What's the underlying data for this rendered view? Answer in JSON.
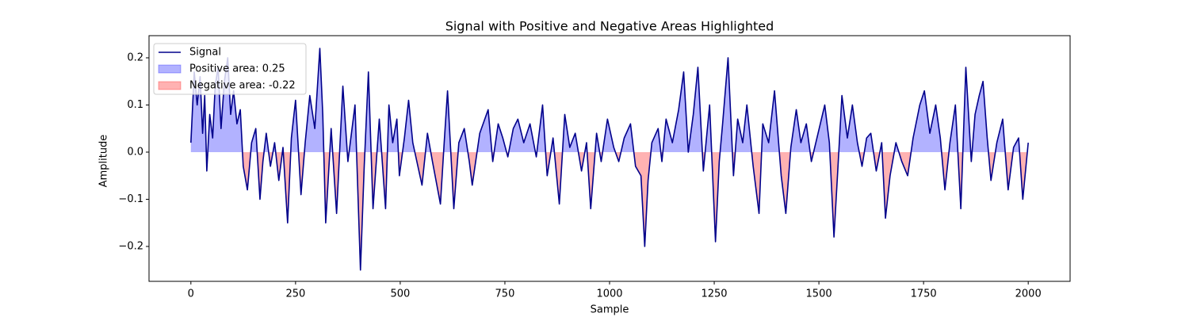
{
  "chart_data": {
    "type": "line",
    "title": "Signal with Positive and Negative Areas Highlighted",
    "x_label": "Sample",
    "y_label": "Amplitude",
    "xlim": [
      -100,
      2100
    ],
    "ylim": [
      -0.274,
      0.247
    ],
    "xticks": [
      0,
      250,
      500,
      750,
      1000,
      1250,
      1500,
      1750,
      2000
    ],
    "yticks": [
      {
        "value": -0.2,
        "label": "−0.2"
      },
      {
        "value": -0.1,
        "label": "−0.1"
      },
      {
        "value": 0,
        "label": "0.0"
      },
      0.1,
      0.2
    ],
    "legend": "upper left",
    "x": [
      0,
      8,
      15,
      22,
      28,
      33,
      38,
      45,
      52,
      58,
      65,
      72,
      80,
      88,
      95,
      102,
      110,
      118,
      125,
      135,
      145,
      155,
      165,
      172,
      180,
      190,
      200,
      210,
      220,
      231,
      240,
      250,
      263,
      273,
      284,
      296,
      308,
      315,
      322,
      335,
      348,
      363,
      375,
      392,
      405,
      414,
      424,
      435,
      450,
      465,
      473,
      482,
      492,
      498,
      510,
      520,
      530,
      552,
      565,
      577,
      596,
      605,
      613,
      628,
      640,
      653,
      665,
      672,
      690,
      710,
      721,
      734,
      745,
      757,
      770,
      781,
      795,
      810,
      825,
      840,
      851,
      865,
      880,
      893,
      905,
      918,
      933,
      945,
      955,
      969,
      980,
      995,
      1010,
      1022,
      1035,
      1050,
      1062,
      1075,
      1084,
      1092,
      1101,
      1116,
      1125,
      1135,
      1150,
      1165,
      1177,
      1188,
      1200,
      1211,
      1224,
      1239,
      1253,
      1262,
      1270,
      1283,
      1296,
      1306,
      1318,
      1328,
      1343,
      1357,
      1366,
      1380,
      1394,
      1410,
      1421,
      1433,
      1446,
      1457,
      1470,
      1482,
      1498,
      1514,
      1525,
      1536,
      1545,
      1555,
      1568,
      1580,
      1592,
      1603,
      1614,
      1624,
      1637,
      1650,
      1659,
      1670,
      1684,
      1698,
      1712,
      1725,
      1741,
      1752,
      1765,
      1779,
      1790,
      1801,
      1813,
      1826,
      1839,
      1851,
      1864,
      1873,
      1883,
      1892,
      1902,
      1911,
      1925,
      1939,
      1952,
      1965,
      1977,
      1987,
      2000
    ],
    "series": [
      {
        "name": "Signal",
        "color": "#00008b",
        "values": [
          0.02,
          0.17,
          0.1,
          0.16,
          0.04,
          0.12,
          -0.04,
          0.08,
          0.03,
          0.14,
          0.18,
          0.05,
          0.15,
          0.2,
          0.08,
          0.13,
          0.06,
          0.09,
          -0.03,
          -0.08,
          0.02,
          0.05,
          -0.1,
          -0.02,
          0.04,
          -0.03,
          0.02,
          -0.06,
          0.01,
          -0.15,
          0.03,
          0.11,
          -0.09,
          0.02,
          0.12,
          0.05,
          0.22,
          0.08,
          -0.15,
          0.05,
          -0.13,
          0.14,
          -0.02,
          0.1,
          -0.25,
          -0.03,
          0.17,
          -0.12,
          0.07,
          -0.12,
          0.1,
          0.02,
          0.07,
          -0.05,
          0.03,
          0.11,
          0.02,
          -0.07,
          0.04,
          -0.02,
          -0.11,
          0.02,
          0.13,
          -0.12,
          0.02,
          0.05,
          -0.02,
          -0.07,
          0.04,
          0.09,
          -0.02,
          0.06,
          0.03,
          -0.01,
          0.05,
          0.07,
          0.02,
          0.06,
          -0.01,
          0.1,
          -0.05,
          0.03,
          -0.11,
          0.08,
          0.01,
          0.04,
          -0.04,
          0.02,
          -0.12,
          0.04,
          -0.02,
          0.07,
          0.01,
          -0.02,
          0.03,
          0.06,
          -0.03,
          -0.05,
          -0.2,
          -0.06,
          0.02,
          0.05,
          -0.02,
          0.07,
          0.02,
          0.09,
          0.17,
          0.0,
          0.08,
          0.18,
          -0.04,
          0.1,
          -0.19,
          -0.02,
          0.06,
          0.2,
          -0.05,
          0.07,
          0.02,
          0.1,
          -0.03,
          -0.13,
          0.06,
          0.02,
          0.13,
          -0.05,
          -0.13,
          0.01,
          0.09,
          0.02,
          0.06,
          -0.02,
          0.04,
          0.1,
          0.02,
          -0.18,
          -0.04,
          0.12,
          0.03,
          0.1,
          0.02,
          -0.03,
          0.03,
          0.04,
          -0.04,
          0.02,
          -0.14,
          -0.05,
          0.02,
          -0.02,
          -0.05,
          0.03,
          0.1,
          0.13,
          0.04,
          0.1,
          0.03,
          -0.08,
          0.02,
          0.1,
          -0.12,
          0.18,
          -0.02,
          0.08,
          0.12,
          0.15,
          0.03,
          -0.06,
          0.02,
          0.07,
          -0.08,
          0.01,
          0.03,
          -0.1,
          0.02
        ]
      }
    ],
    "fills": [
      {
        "name": "Positive area: 0.25",
        "color": "#0000ff",
        "side": "positive"
      },
      {
        "name": "Negative area: -0.22",
        "color": "#ff0000",
        "side": "negative"
      }
    ]
  }
}
